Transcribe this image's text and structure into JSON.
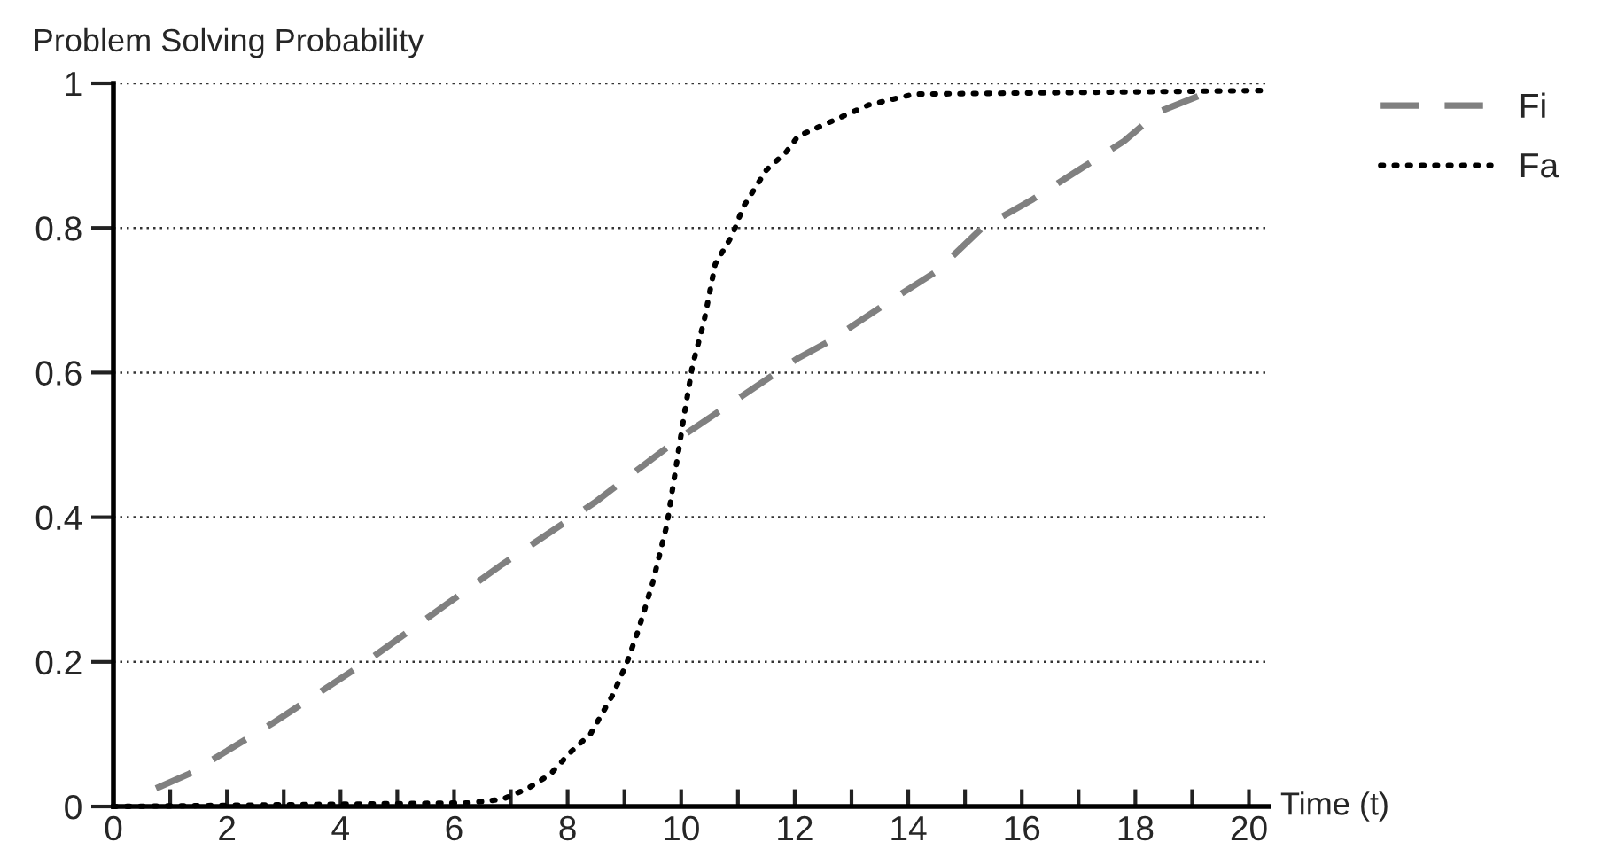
{
  "chart_data": {
    "type": "line",
    "ylabel": "Problem Solving Probability",
    "xlabel": "Time (t)",
    "xlim": [
      0,
      20.35
    ],
    "ylim": [
      0,
      1
    ],
    "xticks": [
      0,
      {
        "value": 1,
        "label": null
      },
      2,
      {
        "value": 3,
        "label": null
      },
      4,
      {
        "value": 5,
        "label": null
      },
      6,
      {
        "value": 7,
        "label": null
      },
      8,
      {
        "value": 9,
        "label": null
      },
      10,
      {
        "value": 11,
        "label": null
      },
      12,
      {
        "value": 13,
        "label": null
      },
      14,
      {
        "value": 15,
        "label": null
      },
      16,
      {
        "value": 17,
        "label": null
      },
      18,
      {
        "value": 19,
        "label": null
      },
      20
    ],
    "yticks": [
      0,
      0.2,
      0.4,
      0.6,
      0.8,
      1
    ],
    "grid": "y",
    "legend": "top right",
    "marker": "none",
    "series": [
      {
        "name": "Fi",
        "color": "#808080",
        "line_style": "dashed",
        "x": [
          0.75,
          1.33,
          2.8,
          4.45,
          6.85,
          8.47,
          9.98,
          12.06,
          12.6,
          13.7,
          14.5,
          15.3,
          16.2,
          17.0,
          17.8,
          18.4,
          19.35
        ],
        "values": [
          0.025,
          0.045,
          0.115,
          0.2,
          0.335,
          0.42,
          0.51,
          0.62,
          0.643,
          0.7,
          0.74,
          0.8,
          0.84,
          0.88,
          0.92,
          0.96,
          0.99
        ]
      },
      {
        "name": "Fa",
        "color": "#000000",
        "line_style": "dotted",
        "x": [
          0,
          6.27,
          6.85,
          7.3,
          7.7,
          8.05,
          8.4,
          8.8,
          9.05,
          9.25,
          9.5,
          9.75,
          9.9,
          10.05,
          10.2,
          10.4,
          10.6,
          10.9,
          11.1,
          11.5,
          11.85,
          12.06,
          13.3,
          14.1,
          20.2
        ],
        "values": [
          0,
          0.005,
          0.01,
          0.025,
          0.045,
          0.075,
          0.1,
          0.155,
          0.2,
          0.245,
          0.31,
          0.39,
          0.465,
          0.54,
          0.61,
          0.67,
          0.75,
          0.79,
          0.83,
          0.88,
          0.905,
          0.927,
          0.97,
          0.985,
          0.99
        ]
      }
    ]
  }
}
